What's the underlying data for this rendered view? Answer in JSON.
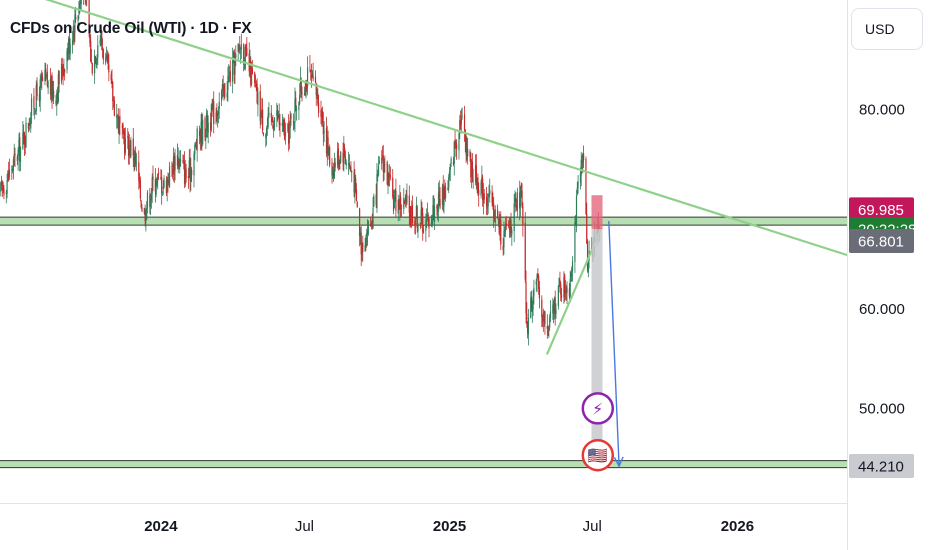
{
  "chart_data": {
    "type": "candlestick",
    "title": "CFDs on Crude Oil (WTI) · 1D · FX",
    "currency": "USD",
    "y_ticks": [
      "80.000",
      "60.000",
      "50.000"
    ],
    "x_ticks": [
      {
        "label": "2024",
        "bold": true
      },
      {
        "label": "Jul",
        "bold": false
      },
      {
        "label": "2025",
        "bold": true
      },
      {
        "label": "Jul",
        "bold": false
      },
      {
        "label": "2026",
        "bold": true
      }
    ],
    "ylim": [
      40.5,
      91
    ],
    "xlim": [
      "2023-06-11",
      "2026-05-20"
    ],
    "price_labels": [
      {
        "text": "69.985",
        "value": 69.985,
        "color": "#c2185b"
      },
      {
        "text": "20:22:28",
        "value": 68.0,
        "color": "#1e7d32"
      },
      {
        "text": "66.801",
        "value": 66.801,
        "color": "#6a6d78"
      },
      {
        "text": "44.210",
        "value": 44.21,
        "color": "#c9cbd1"
      }
    ],
    "support_zones": [
      {
        "low": 68.4,
        "high": 69.2
      },
      {
        "low": 44.05,
        "high": 44.75
      }
    ],
    "trendlines": [
      {
        "from": [
          "2023-06-25",
          92.2
        ],
        "to": [
          "2026-05-20",
          65.4
        ],
        "color": "#8fd18a"
      },
      {
        "from": [
          "2025-05-05",
          55.5
        ],
        "to": [
          "2025-07-12",
          68.0
        ],
        "color": "#8fd18a"
      }
    ],
    "short_position": {
      "start": "2025-06-30",
      "end": "2025-07-14",
      "stop": 71.4,
      "entry": 68.0,
      "target": 44.2
    },
    "projection_arrow": {
      "from": [
        "2025-07-22",
        68.8
      ],
      "to": [
        "2025-08-04",
        44.2
      ],
      "color": "#4a78e0"
    },
    "event_icons": [
      {
        "name": "lightning-icon",
        "date": "2025-07-08",
        "value": 50.0,
        "glyph": "⚡",
        "color": "#8e24aa"
      },
      {
        "name": "us-flag-icon",
        "date": "2025-07-08",
        "value": 45.3,
        "glyph": "🇺🇸",
        "color": "#e53935"
      }
    ],
    "candle_colors": {
      "up": "#2e7d5b",
      "down": "#c62828"
    },
    "price_path": [
      [
        "2023-06-11",
        71.5
      ],
      [
        "2023-06-25",
        74.0
      ],
      [
        "2023-07-09",
        76.5
      ],
      [
        "2023-07-23",
        80.5
      ],
      [
        "2023-08-06",
        83.0
      ],
      [
        "2023-08-20",
        81.5
      ],
      [
        "2023-09-03",
        85.5
      ],
      [
        "2023-09-17",
        90.0
      ],
      [
        "2023-09-27",
        92.5
      ],
      [
        "2023-10-05",
        84.5
      ],
      [
        "2023-10-16",
        87.5
      ],
      [
        "2023-10-30",
        82.0
      ],
      [
        "2023-11-13",
        77.0
      ],
      [
        "2023-11-27",
        76.0
      ],
      [
        "2023-12-10",
        69.5
      ],
      [
        "2023-12-24",
        73.0
      ],
      [
        "2024-01-07",
        72.5
      ],
      [
        "2024-01-21",
        75.5
      ],
      [
        "2024-02-04",
        73.0
      ],
      [
        "2024-02-18",
        77.5
      ],
      [
        "2024-03-03",
        79.0
      ],
      [
        "2024-03-17",
        81.0
      ],
      [
        "2024-03-31",
        84.0
      ],
      [
        "2024-04-12",
        86.5
      ],
      [
        "2024-04-26",
        83.0
      ],
      [
        "2024-05-12",
        78.0
      ],
      [
        "2024-05-26",
        79.5
      ],
      [
        "2024-06-09",
        77.0
      ],
      [
        "2024-06-23",
        81.5
      ],
      [
        "2024-07-07",
        83.5
      ],
      [
        "2024-07-21",
        80.5
      ],
      [
        "2024-08-04",
        74.0
      ],
      [
        "2024-08-18",
        76.0
      ],
      [
        "2024-09-01",
        73.5
      ],
      [
        "2024-09-11",
        66.5
      ],
      [
        "2024-09-25",
        69.0
      ],
      [
        "2024-10-07",
        75.5
      ],
      [
        "2024-10-21",
        71.0
      ],
      [
        "2024-11-04",
        70.5
      ],
      [
        "2024-11-18",
        69.5
      ],
      [
        "2024-12-02",
        68.5
      ],
      [
        "2024-12-16",
        70.5
      ],
      [
        "2024-12-30",
        72.5
      ],
      [
        "2025-01-15",
        79.5
      ],
      [
        "2025-01-29",
        74.0
      ],
      [
        "2025-02-12",
        72.0
      ],
      [
        "2025-02-26",
        70.0
      ],
      [
        "2025-03-10",
        67.0
      ],
      [
        "2025-03-24",
        69.5
      ],
      [
        "2025-04-02",
        71.5
      ],
      [
        "2025-04-09",
        58.0
      ],
      [
        "2025-04-20",
        63.0
      ],
      [
        "2025-05-05",
        57.5
      ],
      [
        "2025-05-19",
        62.0
      ],
      [
        "2025-06-02",
        62.5
      ],
      [
        "2025-06-13",
        72.0
      ],
      [
        "2025-06-20",
        75.0
      ],
      [
        "2025-06-25",
        65.0
      ],
      [
        "2025-07-02",
        67.0
      ],
      [
        "2025-07-10",
        68.0
      ]
    ]
  }
}
